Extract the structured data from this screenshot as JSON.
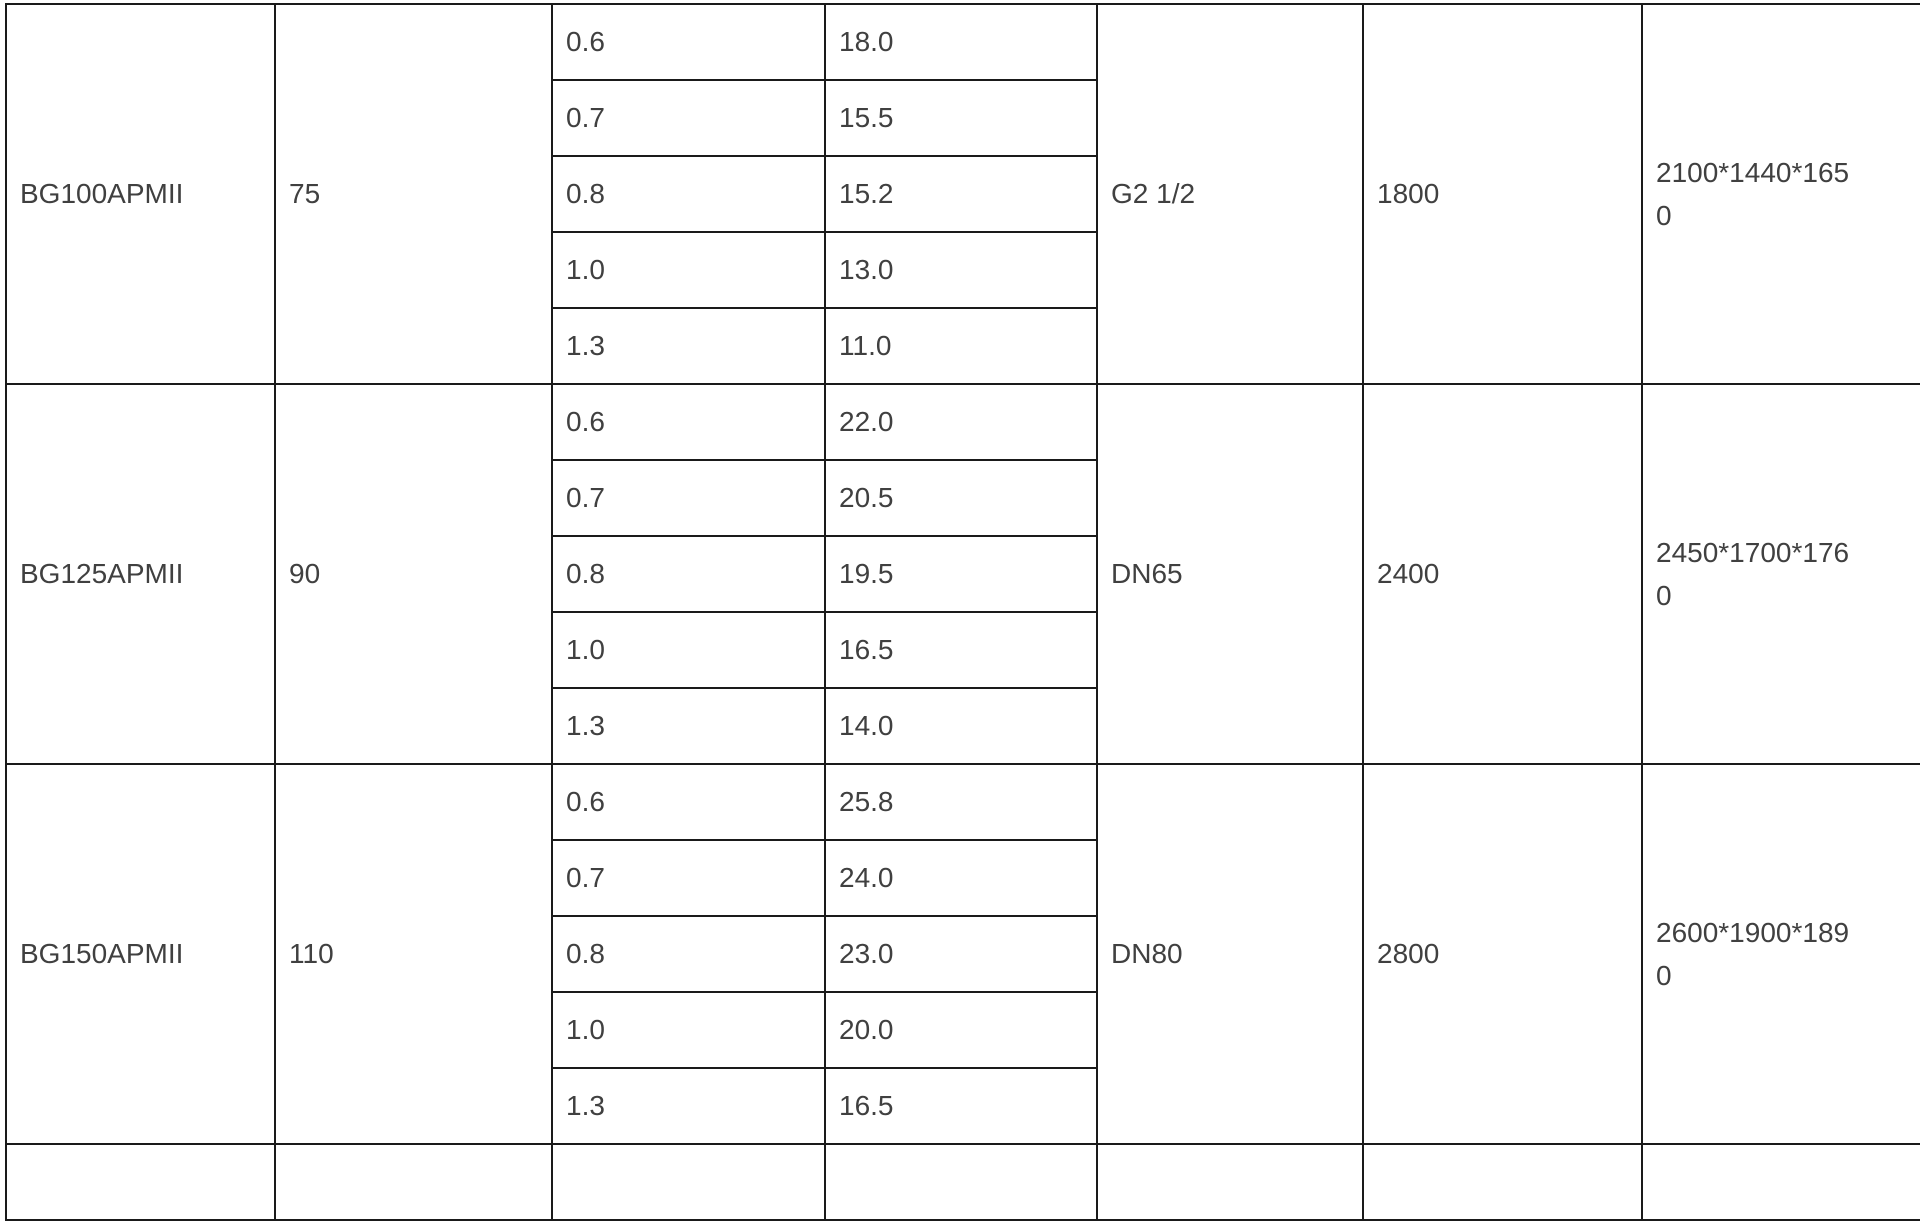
{
  "page": {
    "background_color": "#ffffff"
  },
  "table": {
    "border_color": "#1a1a1a",
    "text_color": "#404040",
    "groups": [
      {
        "model": "BG100APMII",
        "power": "75",
        "outlet": "G2 1/2",
        "weight": "1800",
        "dimensions": "2100*1440*1650",
        "rows": [
          {
            "pressure": "0.6",
            "capacity": "18.0"
          },
          {
            "pressure": "0.7",
            "capacity": "15.5"
          },
          {
            "pressure": "0.8",
            "capacity": "15.2"
          },
          {
            "pressure": "1.0",
            "capacity": "13.0"
          },
          {
            "pressure": "1.3",
            "capacity": "11.0"
          }
        ]
      },
      {
        "model": "BG125APMII",
        "power": "90",
        "outlet": "DN65",
        "weight": "2400",
        "dimensions": "2450*1700*1760",
        "rows": [
          {
            "pressure": "0.6",
            "capacity": "22.0"
          },
          {
            "pressure": "0.7",
            "capacity": "20.5"
          },
          {
            "pressure": "0.8",
            "capacity": "19.5"
          },
          {
            "pressure": "1.0",
            "capacity": "16.5"
          },
          {
            "pressure": "1.3",
            "capacity": "14.0"
          }
        ]
      },
      {
        "model": "BG150APMII",
        "power": "110",
        "outlet": "DN80",
        "weight": "2800",
        "dimensions": "2600*1900*1890",
        "rows": [
          {
            "pressure": "0.6",
            "capacity": "25.8"
          },
          {
            "pressure": "0.7",
            "capacity": "24.0"
          },
          {
            "pressure": "0.8",
            "capacity": "23.0"
          },
          {
            "pressure": "1.0",
            "capacity": "20.0"
          },
          {
            "pressure": "1.3",
            "capacity": "16.5"
          }
        ]
      }
    ]
  }
}
